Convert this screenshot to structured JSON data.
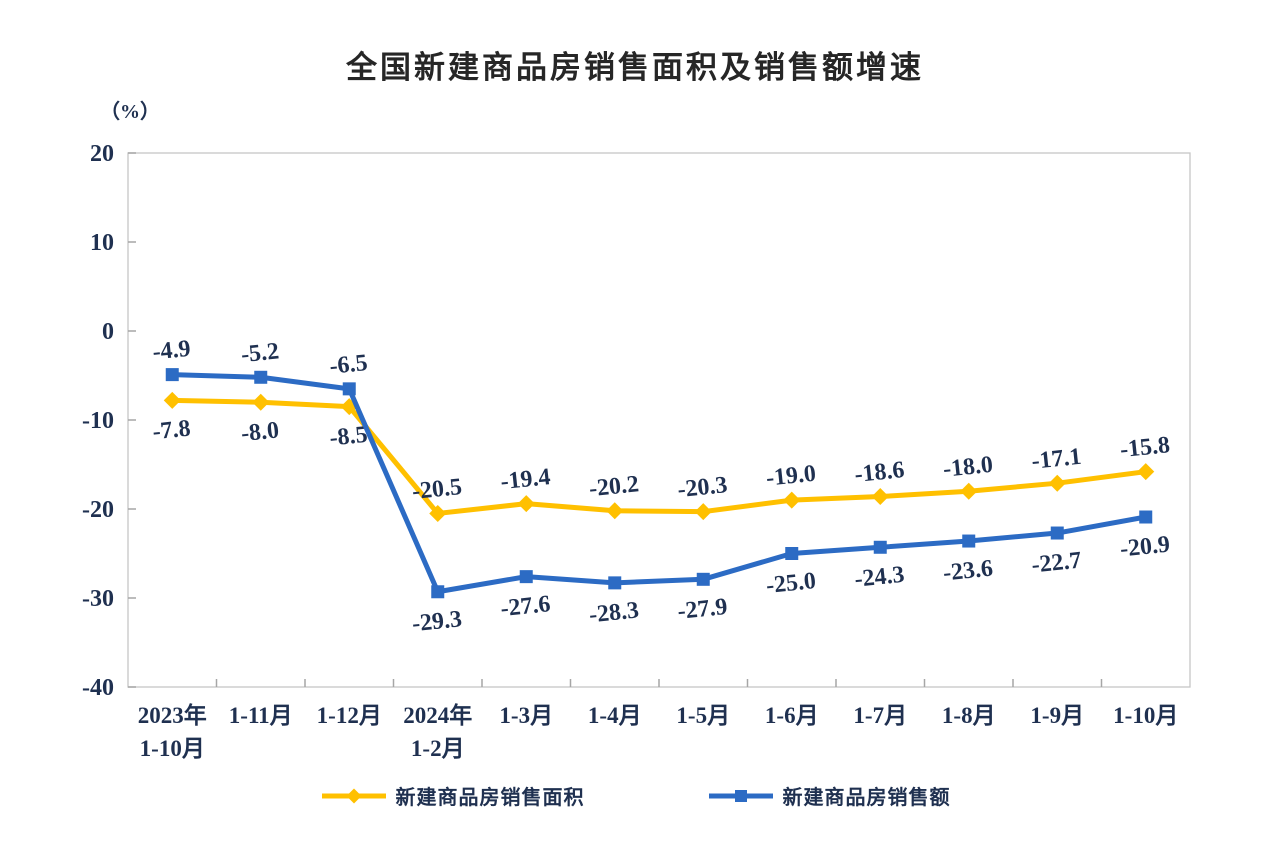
{
  "chart_data": {
    "type": "line",
    "title": "全国新建商品房销售面积及销售额增速",
    "unit_label": "（%）",
    "categories": [
      "2023年\n1-10月",
      "1-11月",
      "1-12月",
      "2024年\n1-2月",
      "1-3月",
      "1-4月",
      "1-5月",
      "1-6月",
      "1-7月",
      "1-8月",
      "1-9月",
      "1-10月"
    ],
    "series": [
      {
        "name": "新建商品房销售面积",
        "color": "#FFC000",
        "marker": "diamond",
        "values": [
          -7.8,
          -8.0,
          -8.5,
          -20.5,
          -19.4,
          -20.2,
          -20.3,
          -19.0,
          -18.6,
          -18.0,
          -17.1,
          -15.8
        ]
      },
      {
        "name": "新建商品房销售额",
        "color": "#2C6BC4",
        "marker": "square",
        "values": [
          -4.9,
          -5.2,
          -6.5,
          -29.3,
          -27.6,
          -28.3,
          -27.9,
          -25.0,
          -24.3,
          -23.6,
          -22.7,
          -20.9
        ]
      }
    ],
    "ylim": [
      -40,
      20
    ],
    "ytick_step": 10,
    "yticks": [
      20,
      10,
      0,
      -10,
      -20,
      -30,
      -40
    ],
    "grid": false,
    "legend_position": "bottom",
    "background": "#ffffff",
    "text_color": "#1f3050",
    "title_color": "#262626",
    "axis_color": "#c6c6c6",
    "tick_color": "#a6a6a6"
  }
}
